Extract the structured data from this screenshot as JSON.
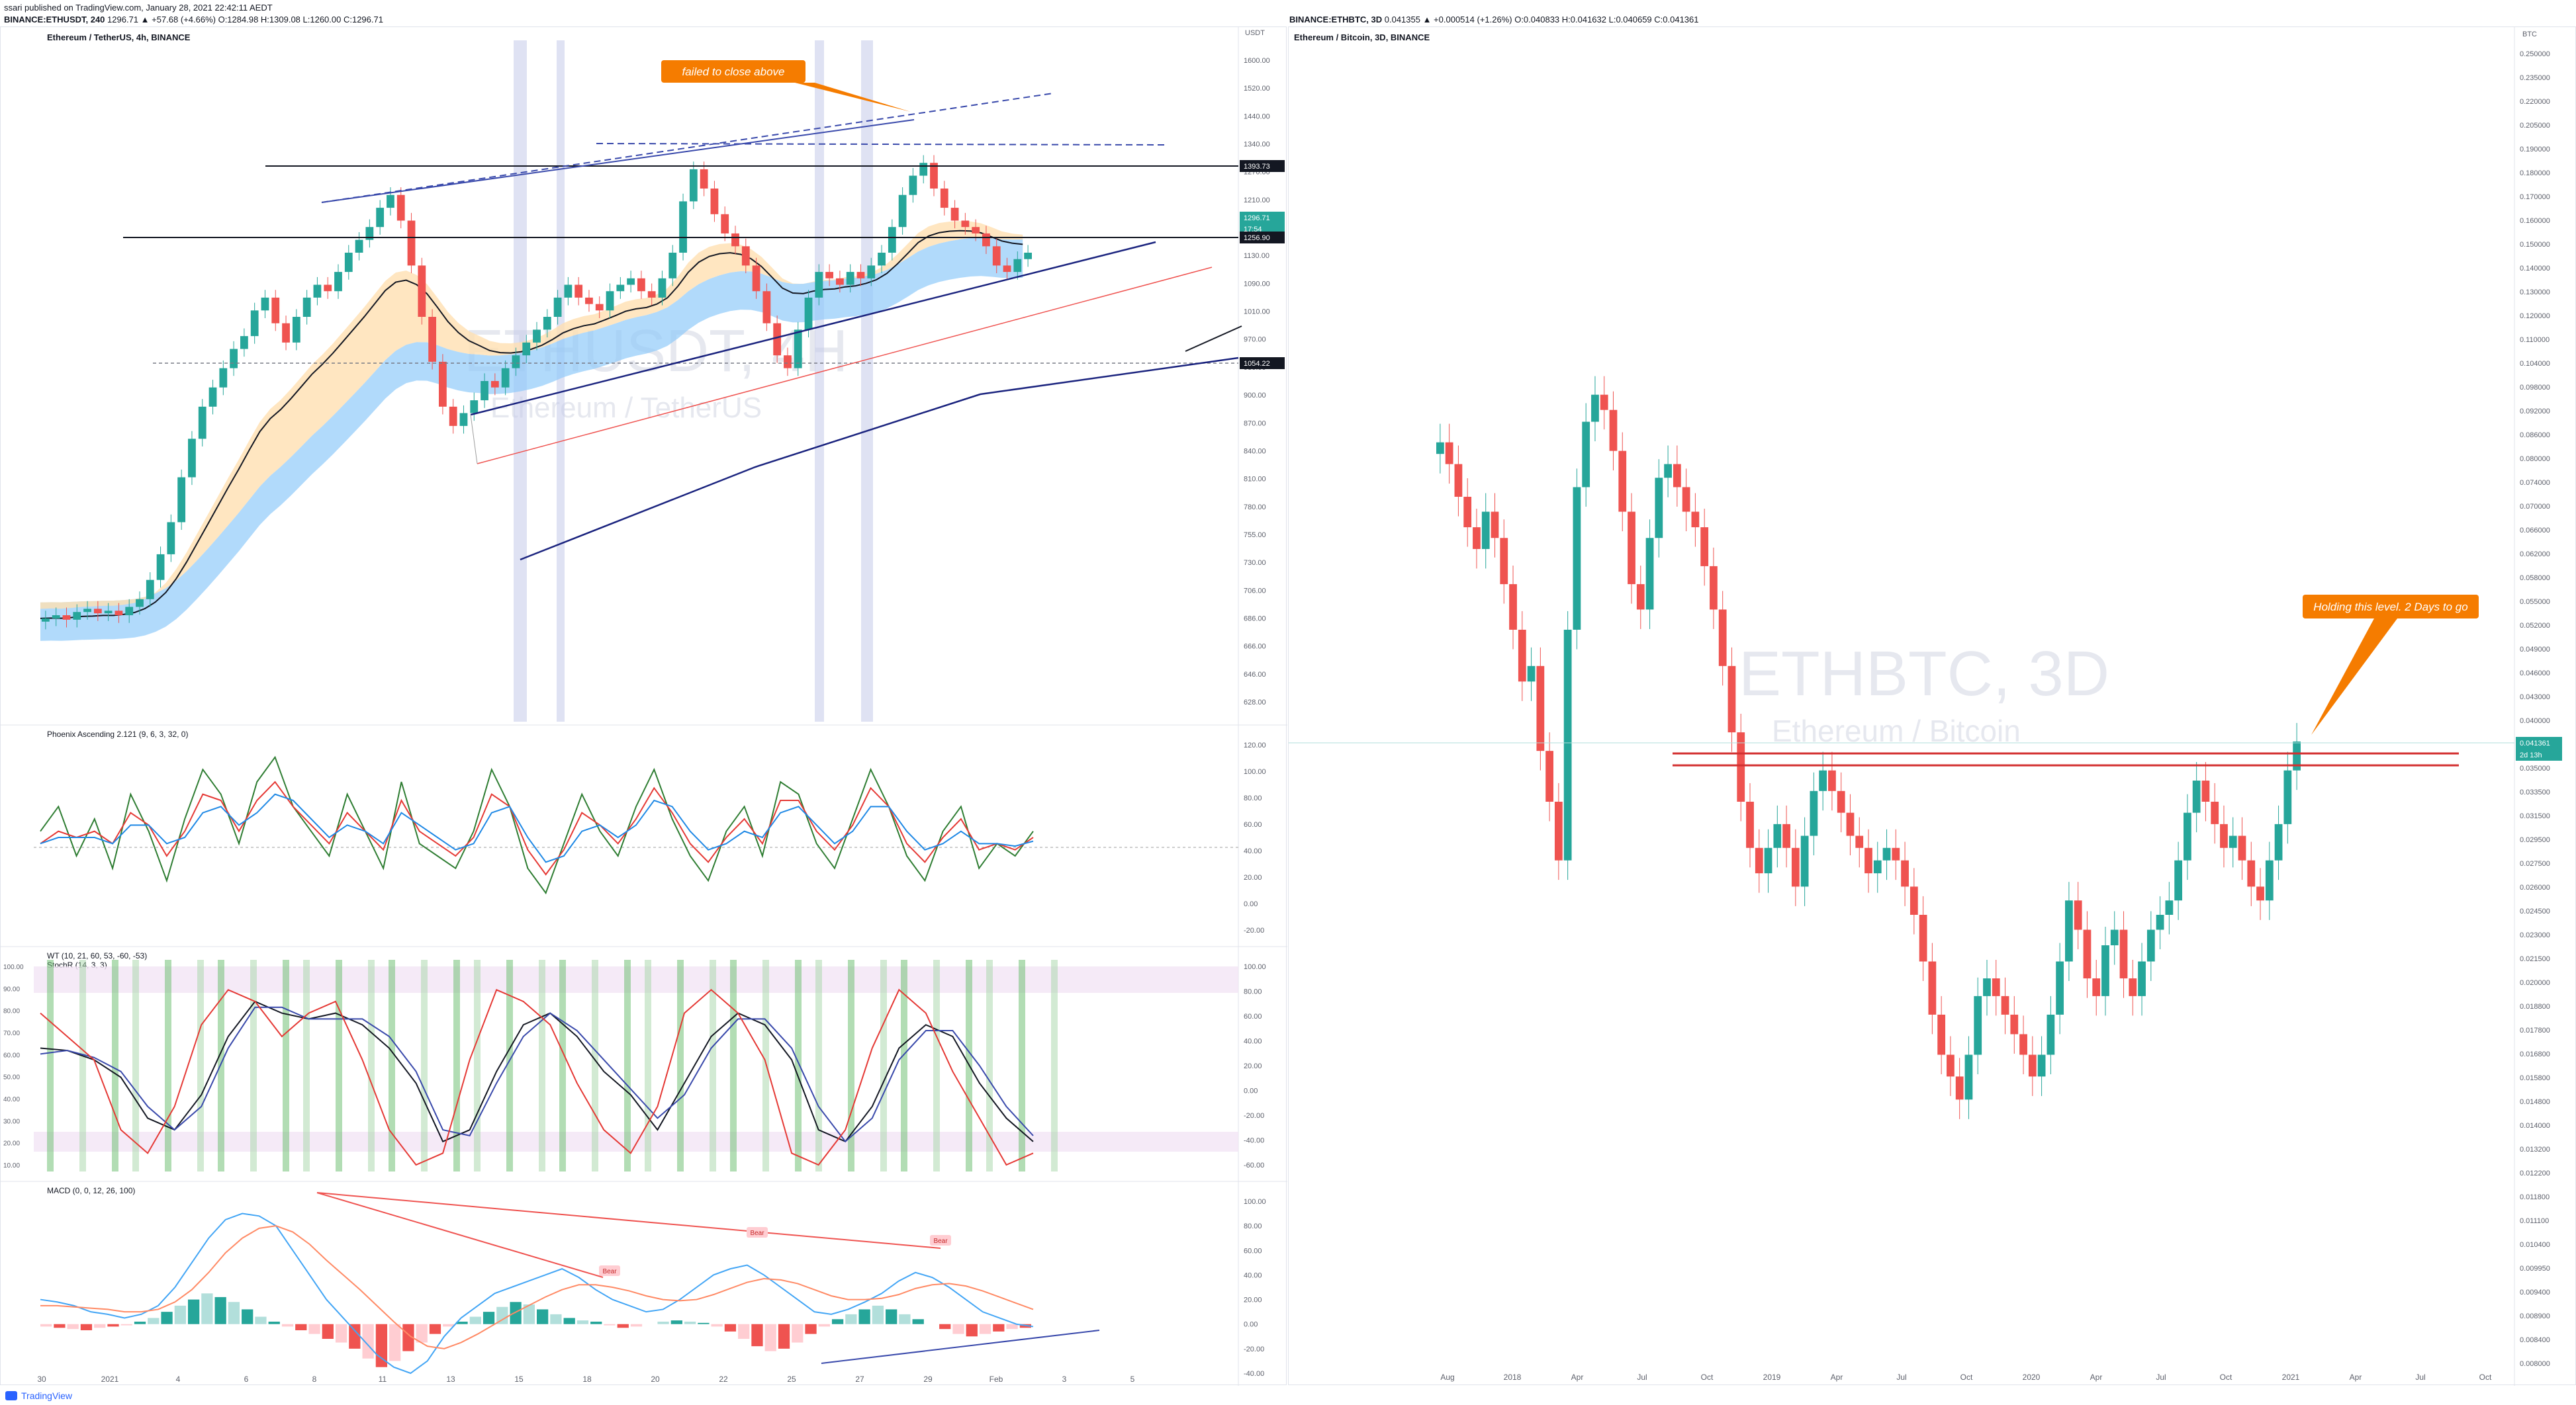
{
  "meta": {
    "published": "ssari published on TradingView.com, January 28, 2021 22:42:11 AEDT",
    "left_symbol": "BINANCE:ETHUSDT, 240",
    "left_quote": "1296.71 ▲ +57.68 (+4.66%) O:1284.98 H:1309.08 L:1260.00 C:1296.71",
    "right_symbol": "BINANCE:ETHBTC, 3D",
    "right_quote": "0.041355 ▲ +0.000514 (+1.26%) O:0.040833 H:0.041632 L:0.040659 C:0.041361",
    "footer": "TradingView"
  },
  "chart_data": [
    {
      "type": "candlestick",
      "id": "ethusdt-4h",
      "title": "Ethereum / TetherUS, 4h, BINANCE",
      "watermark": "ETHUSDT, 4H",
      "watermark_sub": "Ethereum / TetherUS",
      "y_unit": "USDT",
      "y_ticks": [
        "1600.00",
        "1520.00",
        "1440.00",
        "1340.00",
        "1270.00",
        "1210.00",
        "1170.00",
        "1130.00",
        "1090.00",
        "1010.00",
        "970.00",
        "930.00",
        "900.00",
        "870.00",
        "840.00",
        "810.00",
        "780.00",
        "755.00",
        "730.00",
        "706.00",
        "686.00",
        "666.00",
        "646.00",
        "628.00"
      ],
      "x_ticks": [
        "30",
        "2021",
        "4",
        "6",
        "8",
        "11",
        "13",
        "15",
        "18",
        "20",
        "22",
        "25",
        "27",
        "29",
        "Feb",
        "3",
        "5"
      ],
      "price_labels": [
        {
          "text": "1393.73",
          "color": "#131722"
        },
        {
          "text": "1296.71",
          "color": "#26a69a"
        },
        {
          "text": "17:54",
          "color": "#26a69a"
        },
        {
          "text": "1256.90",
          "color": "#131722"
        },
        {
          "text": "1054.22",
          "color": "#131722"
        }
      ],
      "annotation": "failed to close above",
      "series_close": [
        730,
        735,
        728,
        740,
        745,
        738,
        742,
        735,
        748,
        760,
        790,
        830,
        880,
        950,
        1010,
        1060,
        1090,
        1120,
        1150,
        1170,
        1210,
        1230,
        1190,
        1160,
        1200,
        1230,
        1250,
        1240,
        1270,
        1300,
        1320,
        1340,
        1370,
        1390,
        1350,
        1280,
        1200,
        1130,
        1060,
        1030,
        1050,
        1070,
        1100,
        1090,
        1120,
        1140,
        1160,
        1180,
        1200,
        1230,
        1250,
        1230,
        1220,
        1210,
        1240,
        1250,
        1260,
        1240,
        1230,
        1260,
        1300,
        1380,
        1430,
        1400,
        1360,
        1330,
        1310,
        1280,
        1240,
        1190,
        1140,
        1120,
        1180,
        1230,
        1270,
        1260,
        1250,
        1270,
        1260,
        1280,
        1300,
        1340,
        1390,
        1420,
        1440,
        1400,
        1370,
        1350,
        1340,
        1330,
        1310,
        1280,
        1270,
        1290,
        1300
      ]
    },
    {
      "type": "line",
      "id": "phoenix",
      "title": "Phoenix Ascending 2.121 (9, 6, 3, 32, 0)",
      "y_ticks": [
        "120.00",
        "100.00",
        "80.00",
        "60.00",
        "40.00",
        "20.00",
        "0.00",
        "-20.00"
      ],
      "series": [
        {
          "color": "#2e7d32",
          "values": [
            60,
            80,
            40,
            70,
            30,
            90,
            60,
            20,
            70,
            110,
            90,
            50,
            100,
            120,
            80,
            60,
            40,
            90,
            60,
            30,
            100,
            50,
            40,
            30,
            60,
            110,
            80,
            30,
            10,
            50,
            90,
            60,
            40,
            80,
            110,
            70,
            40,
            20,
            60,
            80,
            40,
            100,
            90,
            50,
            30,
            70,
            110,
            80,
            40,
            20,
            60,
            80,
            30,
            50,
            40,
            60
          ]
        },
        {
          "color": "#e53935",
          "values": [
            50,
            60,
            55,
            60,
            50,
            75,
            65,
            40,
            60,
            90,
            85,
            60,
            85,
            100,
            80,
            65,
            50,
            75,
            60,
            45,
            85,
            60,
            50,
            40,
            55,
            90,
            80,
            45,
            25,
            45,
            75,
            65,
            50,
            70,
            95,
            75,
            50,
            35,
            55,
            70,
            50,
            85,
            85,
            60,
            45,
            65,
            95,
            80,
            50,
            35,
            55,
            70,
            45,
            50,
            45,
            55
          ]
        },
        {
          "color": "#1e88e5",
          "values": [
            50,
            55,
            55,
            55,
            50,
            65,
            65,
            50,
            55,
            75,
            80,
            65,
            75,
            90,
            85,
            70,
            55,
            65,
            60,
            50,
            75,
            65,
            55,
            45,
            50,
            75,
            80,
            55,
            35,
            40,
            60,
            65,
            55,
            65,
            85,
            80,
            60,
            45,
            50,
            60,
            55,
            75,
            80,
            65,
            50,
            60,
            80,
            80,
            60,
            45,
            50,
            60,
            50,
            50,
            48,
            52
          ]
        }
      ]
    },
    {
      "type": "line",
      "id": "wavetrend",
      "title": "WT (10, 21, 60, 53, -60, -53)",
      "subtitle": "StochR (14, 3, 3)",
      "y_ticks_right": [
        "100.00",
        "80.00",
        "60.00",
        "40.00",
        "20.00",
        "0.00",
        "-20.00",
        "-40.00",
        "-60.00"
      ],
      "y_ticks_left": [
        "100.00",
        "90.00",
        "80.00",
        "70.00",
        "60.00",
        "50.00",
        "40.00",
        "30.00",
        "20.00",
        "10.00"
      ],
      "series": [
        {
          "color": "#131722",
          "values": [
            30,
            28,
            20,
            5,
            -30,
            -40,
            -10,
            40,
            70,
            60,
            55,
            60,
            50,
            30,
            0,
            -50,
            -40,
            10,
            50,
            60,
            40,
            10,
            -10,
            -40,
            0,
            40,
            60,
            50,
            20,
            -40,
            -50,
            -20,
            30,
            50,
            40,
            0,
            -30,
            -50
          ]
        },
        {
          "color": "#3949ab",
          "values": [
            25,
            28,
            22,
            10,
            -20,
            -40,
            -20,
            30,
            65,
            65,
            55,
            55,
            55,
            40,
            10,
            -40,
            -45,
            0,
            40,
            60,
            45,
            20,
            -5,
            -30,
            -10,
            30,
            55,
            55,
            30,
            -20,
            -50,
            -30,
            20,
            45,
            45,
            15,
            -20,
            -45
          ]
        },
        {
          "color": "#e53935",
          "values": [
            60,
            40,
            20,
            -40,
            -60,
            -20,
            50,
            80,
            70,
            40,
            60,
            70,
            20,
            -40,
            -70,
            -60,
            20,
            80,
            70,
            50,
            0,
            -40,
            -60,
            -20,
            60,
            80,
            60,
            20,
            -60,
            -70,
            -40,
            30,
            80,
            60,
            10,
            -30,
            -70,
            -60
          ]
        }
      ]
    },
    {
      "type": "bar+line",
      "id": "macd",
      "title": "MACD (0, 0, 12, 26, 100)",
      "y_ticks": [
        "100.00",
        "80.00",
        "60.00",
        "40.00",
        "20.00",
        "0.00",
        "-20.00",
        "-40.00"
      ],
      "annotations": [
        "Bear",
        "Bear",
        "Bear"
      ],
      "histogram": [
        -2,
        -3,
        -4,
        -5,
        -3,
        -2,
        -1,
        2,
        5,
        10,
        15,
        20,
        25,
        22,
        18,
        12,
        6,
        2,
        -2,
        -5,
        -8,
        -12,
        -15,
        -20,
        -28,
        -35,
        -30,
        -22,
        -15,
        -8,
        -2,
        2,
        6,
        10,
        14,
        18,
        16,
        12,
        8,
        5,
        3,
        2,
        -1,
        -3,
        -2,
        0,
        2,
        3,
        2,
        1,
        -2,
        -6,
        -12,
        -18,
        -22,
        -20,
        -15,
        -8,
        -2,
        4,
        8,
        12,
        15,
        12,
        8,
        4,
        0,
        -4,
        -8,
        -10,
        -8,
        -6,
        -4,
        -3
      ],
      "macd": [
        20,
        18,
        15,
        10,
        8,
        5,
        8,
        15,
        30,
        50,
        70,
        85,
        90,
        88,
        80,
        60,
        40,
        20,
        5,
        -10,
        -25,
        -35,
        -40,
        -30,
        -10,
        5,
        15,
        25,
        30,
        35,
        40,
        45,
        38,
        28,
        20,
        15,
        10,
        12,
        20,
        30,
        40,
        45,
        48,
        40,
        30,
        20,
        10,
        8,
        12,
        18,
        25,
        35,
        42,
        38,
        30,
        20,
        10,
        5,
        0,
        -2
      ],
      "signal": [
        15,
        15,
        14,
        13,
        12,
        10,
        10,
        12,
        18,
        28,
        42,
        58,
        70,
        78,
        80,
        75,
        65,
        52,
        40,
        28,
        15,
        2,
        -10,
        -18,
        -20,
        -15,
        -8,
        0,
        8,
        15,
        22,
        28,
        32,
        32,
        30,
        27,
        23,
        20,
        19,
        20,
        24,
        29,
        34,
        37,
        36,
        33,
        28,
        23,
        20,
        20,
        21,
        24,
        29,
        32,
        33,
        31,
        27,
        22,
        17,
        12
      ]
    },
    {
      "type": "candlestick",
      "id": "ethbtc-3d",
      "title": "Ethereum / Bitcoin, 3D, BINANCE",
      "watermark": "ETHBTC, 3D",
      "watermark_sub": "Ethereum / Bitcoin",
      "y_unit": "BTC",
      "y_ticks": [
        "0.250000",
        "0.235000",
        "0.220000",
        "0.205000",
        "0.190000",
        "0.180000",
        "0.170000",
        "0.160000",
        "0.150000",
        "0.140000",
        "0.130000",
        "0.120000",
        "0.110000",
        "0.104000",
        "0.098000",
        "0.092000",
        "0.086000",
        "0.080000",
        "0.074000",
        "0.070000",
        "0.066000",
        "0.062000",
        "0.058000",
        "0.055000",
        "0.052000",
        "0.049000",
        "0.046000",
        "0.043000",
        "0.040000",
        "0.037500",
        "0.035000",
        "0.033500",
        "0.031500",
        "0.029500",
        "0.027500",
        "0.026000",
        "0.024500",
        "0.023000",
        "0.021500",
        "0.020000",
        "0.018800",
        "0.017800",
        "0.016800",
        "0.015800",
        "0.014800",
        "0.014000",
        "0.013200",
        "0.012200",
        "0.011800",
        "0.011100",
        "0.010400",
        "0.009950",
        "0.009400",
        "0.008900",
        "0.008400",
        "0.008000"
      ],
      "x_ticks": [
        "Aug",
        "2018",
        "Apr",
        "Jul",
        "Oct",
        "2019",
        "Apr",
        "Jul",
        "Oct",
        "2020",
        "Apr",
        "Jul",
        "Oct",
        "2021",
        "Apr",
        "Jul",
        "Oct"
      ],
      "price_labels": [
        {
          "text": "0.041361",
          "color": "#26a69a"
        },
        {
          "text": "2d 13h",
          "color": "#26a69a"
        }
      ],
      "annotation": "Holding this level. 2 Days to go",
      "series_close": [
        0.09,
        0.085,
        0.078,
        0.072,
        0.068,
        0.075,
        0.07,
        0.062,
        0.055,
        0.048,
        0.05,
        0.04,
        0.035,
        0.03,
        0.055,
        0.08,
        0.095,
        0.102,
        0.098,
        0.088,
        0.075,
        0.062,
        0.058,
        0.07,
        0.082,
        0.085,
        0.08,
        0.075,
        0.072,
        0.065,
        0.058,
        0.05,
        0.042,
        0.035,
        0.031,
        0.029,
        0.031,
        0.033,
        0.031,
        0.028,
        0.032,
        0.036,
        0.038,
        0.036,
        0.034,
        0.032,
        0.031,
        0.029,
        0.03,
        0.031,
        0.03,
        0.028,
        0.026,
        0.023,
        0.02,
        0.018,
        0.017,
        0.016,
        0.018,
        0.021,
        0.022,
        0.021,
        0.02,
        0.019,
        0.018,
        0.017,
        0.018,
        0.02,
        0.023,
        0.027,
        0.025,
        0.022,
        0.021,
        0.024,
        0.025,
        0.022,
        0.021,
        0.023,
        0.025,
        0.026,
        0.027,
        0.03,
        0.034,
        0.037,
        0.035,
        0.033,
        0.031,
        0.032,
        0.03,
        0.028,
        0.027,
        0.03,
        0.033,
        0.038,
        0.041
      ]
    }
  ]
}
